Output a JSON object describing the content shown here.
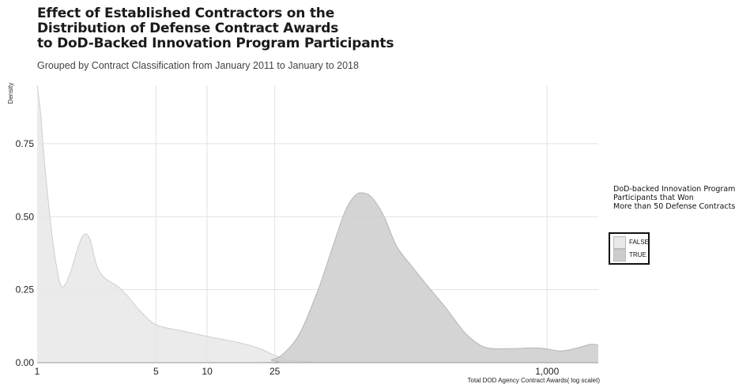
{
  "chart_data": {
    "type": "area",
    "title_lines": [
      "Effect of Established Contractors on the",
      "Distribution of Defense Contract Awards",
      "to DoD-Backed Innovation Program Participants"
    ],
    "subtitle": "Grouped by Contract Classification from January 2011 to January to 2018",
    "xlabel": "Total DOD Agency Contract Awards( log scalet)",
    "ylabel": "Density",
    "x_scale": "log",
    "xlim": [
      1,
      2000
    ],
    "ylim": [
      0,
      0.95
    ],
    "x_ticks": [
      {
        "value": 1,
        "label": "1"
      },
      {
        "value": 5,
        "label": "5"
      },
      {
        "value": 10,
        "label": "10"
      },
      {
        "value": 25,
        "label": "25"
      },
      {
        "value": 1000,
        "label": "1,000"
      }
    ],
    "y_ticks": [
      {
        "value": 0,
        "label": "0.00"
      },
      {
        "value": 0.25,
        "label": "0.25"
      },
      {
        "value": 0.5,
        "label": "0.50"
      },
      {
        "value": 0.75,
        "label": "0.75"
      }
    ],
    "grid": true,
    "legend": {
      "title_lines": [
        "DoD-backed Innovation Program",
        "Participants that Won",
        "More than 50 Defense Contracts"
      ],
      "placement": "right"
    },
    "series": [
      {
        "name": "FALSE",
        "color": "#e8e8e8",
        "stroke": "#cfcfcf",
        "points": [
          [
            1.0,
            0.95
          ],
          [
            1.05,
            0.85
          ],
          [
            1.1,
            0.7
          ],
          [
            1.2,
            0.48
          ],
          [
            1.3,
            0.33
          ],
          [
            1.4,
            0.26
          ],
          [
            1.55,
            0.3
          ],
          [
            1.75,
            0.4
          ],
          [
            1.9,
            0.44
          ],
          [
            2.05,
            0.42
          ],
          [
            2.25,
            0.33
          ],
          [
            2.5,
            0.29
          ],
          [
            3.0,
            0.26
          ],
          [
            3.5,
            0.22
          ],
          [
            4.0,
            0.18
          ],
          [
            5.0,
            0.13
          ],
          [
            7.0,
            0.11
          ],
          [
            10.0,
            0.09
          ],
          [
            15.0,
            0.07
          ],
          [
            20.0,
            0.05
          ],
          [
            25.0,
            0.025
          ],
          [
            30.0,
            0.01
          ],
          [
            40.0,
            0.003
          ],
          [
            60.0,
            0.0
          ],
          [
            2000.0,
            0.0
          ]
        ]
      },
      {
        "name": "TRUE",
        "color": "#cccccc",
        "stroke": "#b5b5b5",
        "points": [
          [
            1.0,
            0.0
          ],
          [
            20.0,
            0.0
          ],
          [
            24.0,
            0.01
          ],
          [
            28.0,
            0.03
          ],
          [
            35.0,
            0.1
          ],
          [
            45.0,
            0.25
          ],
          [
            55.0,
            0.4
          ],
          [
            65.0,
            0.52
          ],
          [
            75.0,
            0.575
          ],
          [
            85.0,
            0.58
          ],
          [
            95.0,
            0.56
          ],
          [
            110.0,
            0.5
          ],
          [
            130.0,
            0.4
          ],
          [
            160.0,
            0.33
          ],
          [
            200.0,
            0.26
          ],
          [
            260.0,
            0.18
          ],
          [
            320.0,
            0.11
          ],
          [
            380.0,
            0.07
          ],
          [
            450.0,
            0.05
          ],
          [
            600.0,
            0.048
          ],
          [
            900.0,
            0.05
          ],
          [
            1200.0,
            0.04
          ],
          [
            1500.0,
            0.05
          ],
          [
            1800.0,
            0.063
          ],
          [
            2000.0,
            0.06
          ]
        ]
      }
    ]
  }
}
